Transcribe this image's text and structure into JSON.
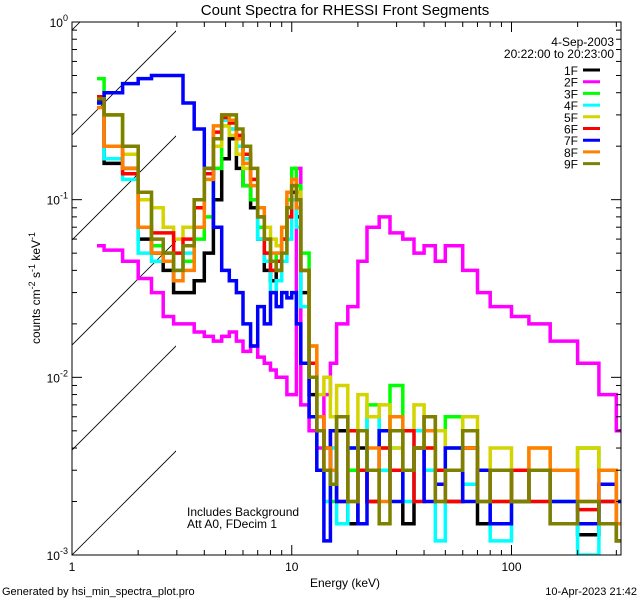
{
  "chart_data": {
    "type": "line",
    "title": "Count Spectra for RHESSI Front Segments",
    "xlabel": "Energy (keV)",
    "ylabel_parts": [
      [
        "counts cm",
        ""
      ],
      [
        "-2",
        "sup"
      ],
      [
        " s",
        ""
      ],
      [
        "-1",
        "sup"
      ],
      [
        " keV",
        ""
      ],
      [
        "-1",
        "sup"
      ]
    ],
    "xscale": "log",
    "yscale": "log",
    "xlim": [
      1,
      315
    ],
    "ylim": [
      0.001,
      1
    ],
    "x_ticks": [
      {
        "value": 1,
        "label": "1"
      },
      {
        "value": 10,
        "label": "10"
      },
      {
        "value": 100,
        "label": "100"
      }
    ],
    "y_ticks": [
      {
        "value": 1,
        "base": "10",
        "exp": "0"
      },
      {
        "value": 0.1,
        "base": "10",
        "exp": "-1"
      },
      {
        "value": 0.01,
        "base": "10",
        "exp": "-2"
      },
      {
        "value": 0.001,
        "base": "10",
        "exp": "-3"
      }
    ],
    "hatched_region_max_energy": 3,
    "legend_placement": "top-right",
    "date": "4-Sep-2003",
    "time_range": "20:22:00 to 20:23:00",
    "annotations": [
      "Includes Background",
      "Att A0, FDecim 1"
    ],
    "energy_bins": [
      1.3,
      1.4,
      1.7,
      2.0,
      2.3,
      2.6,
      2.9,
      3.2,
      3.6,
      4.0,
      4.4,
      4.8,
      5.2,
      5.6,
      6.0,
      6.5,
      7.0,
      7.5,
      8.0,
      8.5,
      9.0,
      9.5,
      10,
      10.5,
      11,
      12,
      13,
      14,
      15,
      16,
      18,
      20,
      22,
      25,
      28,
      32,
      36,
      40,
      45,
      50,
      60,
      70,
      80,
      100,
      120,
      150,
      200,
      250,
      300
    ],
    "series": [
      {
        "name": "1F",
        "color": "#000000",
        "values": [
          0.36,
          0.16,
          0.15,
          0.06,
          0.05,
          0.04,
          0.03,
          0.03,
          0.035,
          0.05,
          0.1,
          0.17,
          0.22,
          0.15,
          0.12,
          0.09,
          0.06,
          0.04,
          0.035,
          0.04,
          0.06,
          0.09,
          0.11,
          0.08,
          0.03,
          0.008,
          0.005,
          0.004,
          0.003,
          0.005,
          0.0015,
          0.004,
          0.002,
          0.005,
          0.003,
          0.0015,
          0.004,
          0.006,
          0.003,
          0.002,
          0.004,
          0.0015,
          0.003,
          0.002,
          0.003,
          0.0015,
          0.0013,
          0.002,
          0.0012
        ]
      },
      {
        "name": "2F",
        "color": "#ff00ff",
        "values": [
          0.055,
          0.052,
          0.045,
          0.036,
          0.03,
          0.022,
          0.02,
          0.02,
          0.018,
          0.017,
          0.016,
          0.017,
          0.018,
          0.016,
          0.014,
          0.015,
          0.013,
          0.012,
          0.011,
          0.01,
          0.01,
          0.008,
          0.008,
          0.15,
          0.007,
          0.005,
          0.004,
          0.008,
          0.012,
          0.02,
          0.025,
          0.045,
          0.07,
          0.08,
          0.065,
          0.06,
          0.05,
          0.055,
          0.045,
          0.055,
          0.04,
          0.03,
          0.025,
          0.022,
          0.02,
          0.016,
          0.012,
          0.008,
          0.005
        ]
      },
      {
        "name": "3F",
        "color": "#00ff00",
        "values": [
          0.48,
          0.3,
          0.2,
          0.1,
          0.055,
          0.05,
          0.04,
          0.045,
          0.06,
          0.08,
          0.15,
          0.26,
          0.25,
          0.18,
          0.12,
          0.1,
          0.07,
          0.05,
          0.04,
          0.05,
          0.07,
          0.1,
          0.15,
          0.12,
          0.05,
          0.012,
          0.005,
          0.004,
          0.002,
          0.006,
          0.003,
          0.005,
          0.007,
          0.004,
          0.009,
          0.003,
          0.004,
          0.005,
          0.003,
          0.006,
          0.004,
          0.003,
          0.002,
          0.003,
          0.003,
          0.002,
          0.004,
          0.003,
          0.002
        ]
      },
      {
        "name": "4F",
        "color": "#00ffff",
        "values": [
          0.35,
          0.17,
          0.13,
          0.05,
          0.045,
          0.045,
          0.04,
          0.05,
          0.09,
          0.14,
          0.22,
          0.28,
          0.25,
          0.2,
          0.17,
          0.13,
          0.06,
          0.045,
          0.03,
          0.035,
          0.045,
          0.06,
          0.1,
          0.07,
          0.025,
          0.01,
          0.003,
          0.002,
          0.004,
          0.0015,
          0.004,
          0.003,
          0.006,
          0.003,
          0.004,
          0.002,
          0.005,
          0.003,
          0.0012,
          0.004,
          0.0025,
          0.002,
          0.0012,
          0.003,
          0.002,
          0.0015,
          0.001,
          0.002,
          0.0015
        ]
      },
      {
        "name": "5F",
        "color": "#d4d400",
        "values": [
          0.37,
          0.3,
          0.18,
          0.1,
          0.09,
          0.07,
          0.06,
          0.07,
          0.1,
          0.13,
          0.2,
          0.26,
          0.23,
          0.18,
          0.15,
          0.13,
          0.09,
          0.07,
          0.06,
          0.055,
          0.06,
          0.09,
          0.13,
          0.11,
          0.04,
          0.015,
          0.008,
          0.01,
          0.006,
          0.009,
          0.005,
          0.008,
          0.006,
          0.007,
          0.004,
          0.005,
          0.007,
          0.004,
          0.005,
          0.004,
          0.006,
          0.003,
          0.004,
          0.003,
          0.004,
          0.003,
          0.004,
          0.003,
          0.002
        ]
      },
      {
        "name": "6F",
        "color": "#ff0000",
        "values": [
          0.38,
          0.2,
          0.14,
          0.07,
          0.065,
          0.065,
          0.05,
          0.06,
          0.09,
          0.14,
          0.24,
          0.29,
          0.27,
          0.23,
          0.18,
          0.13,
          0.08,
          0.05,
          0.04,
          0.045,
          0.06,
          0.08,
          0.12,
          0.1,
          0.04,
          0.012,
          0.006,
          0.003,
          0.005,
          0.002,
          0.005,
          0.003,
          0.002,
          0.004,
          0.003,
          0.005,
          0.002,
          0.004,
          0.003,
          0.002,
          0.004,
          0.003,
          0.002,
          0.003,
          0.002,
          0.003,
          0.0018,
          0.002,
          0.0015
        ]
      },
      {
        "name": "7F",
        "color": "#0000ff",
        "values": [
          0.35,
          0.4,
          0.45,
          0.48,
          0.5,
          0.5,
          0.5,
          0.35,
          0.25,
          0.15,
          0.07,
          0.04,
          0.035,
          0.03,
          0.02,
          0.015,
          0.025,
          0.02,
          0.03,
          0.025,
          0.03,
          0.028,
          0.03,
          0.02,
          0.012,
          0.006,
          0.003,
          0.0012,
          0.005,
          0.002,
          0.004,
          0.0015,
          0.003,
          0.005,
          0.002,
          0.003,
          0.004,
          0.002,
          0.0025,
          0.004,
          0.002,
          0.003,
          0.0015,
          0.002,
          0.003,
          0.002,
          0.0015,
          0.0025,
          0.002
        ]
      },
      {
        "name": "8F",
        "color": "#ff8000",
        "values": [
          0.33,
          0.2,
          0.15,
          0.07,
          0.05,
          0.045,
          0.035,
          0.04,
          0.07,
          0.13,
          0.26,
          0.3,
          0.28,
          0.22,
          0.16,
          0.12,
          0.09,
          0.06,
          0.05,
          0.05,
          0.07,
          0.11,
          0.13,
          0.09,
          0.04,
          0.015,
          0.006,
          0.004,
          0.003,
          0.006,
          0.002,
          0.005,
          0.004,
          0.002,
          0.006,
          0.003,
          0.004,
          0.005,
          0.002,
          0.003,
          0.004,
          0.002,
          0.003,
          0.002,
          0.004,
          0.003,
          0.002,
          0.003,
          0.0015
        ]
      },
      {
        "name": "9F",
        "color": "#808000",
        "values": [
          0.37,
          0.3,
          0.2,
          0.11,
          0.06,
          0.05,
          0.04,
          0.055,
          0.1,
          0.15,
          0.22,
          0.3,
          0.3,
          0.25,
          0.2,
          0.15,
          0.08,
          0.06,
          0.045,
          0.04,
          0.05,
          0.09,
          0.12,
          0.1,
          0.04,
          0.01,
          0.005,
          0.003,
          0.0025,
          0.006,
          0.002,
          0.005,
          0.003,
          0.0015,
          0.005,
          0.003,
          0.004,
          0.006,
          0.002,
          0.003,
          0.005,
          0.002,
          0.003,
          0.002,
          0.003,
          0.0015,
          0.002,
          0.0015,
          0.0012
        ]
      }
    ]
  },
  "footer": {
    "generated_by": "Generated by hsi_min_spectra_plot.pro",
    "timestamp": "10-Apr-2023 21:42"
  }
}
